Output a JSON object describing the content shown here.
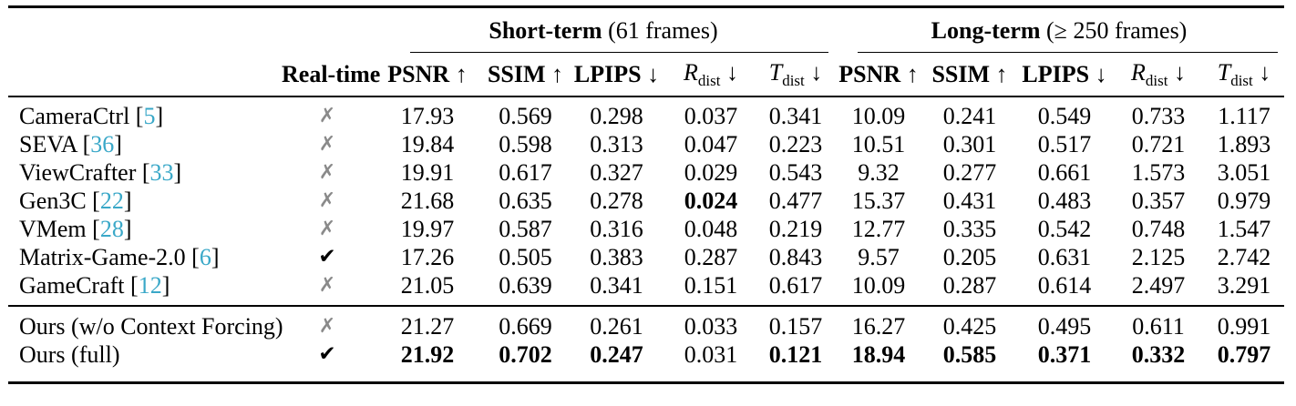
{
  "table": {
    "colors": {
      "cite_link": "#3aa8c8",
      "cross_gray": "#8a8a8a",
      "check_black": "#000000",
      "rule_black": "#000000"
    },
    "glyphs": {
      "yes": "✔",
      "no": "✗"
    },
    "cite_open": "[",
    "cite_close": "]",
    "group_headers": [
      {
        "bold": "Short-term",
        "rest": " (61 frames)"
      },
      {
        "bold": "Long-term",
        "rest": " (≥ 250 frames)"
      }
    ],
    "realtime_header": "Real-time",
    "metrics": [
      {
        "key": "psnr",
        "label": "PSNR",
        "arrow": "↑",
        "math": false
      },
      {
        "key": "ssim",
        "label": "SSIM",
        "arrow": "↑",
        "math": false
      },
      {
        "key": "lpips",
        "label": "LPIPS",
        "arrow": "↓",
        "math": false
      },
      {
        "key": "rdist",
        "label": "R",
        "sub": "dist",
        "arrow": "↓",
        "math": true
      },
      {
        "key": "tdist",
        "label": "T",
        "sub": "dist",
        "arrow": "↓",
        "math": true
      }
    ],
    "rows_main": [
      {
        "method": "CameraCtrl",
        "cite": "5",
        "realtime": false,
        "values": [
          "17.93",
          "0.569",
          "0.298",
          "0.037",
          "0.341",
          "10.09",
          "0.241",
          "0.549",
          "0.733",
          "1.117"
        ],
        "bold": [
          false,
          false,
          false,
          false,
          false,
          false,
          false,
          false,
          false,
          false
        ]
      },
      {
        "method": "SEVA",
        "cite": "36",
        "realtime": false,
        "values": [
          "19.84",
          "0.598",
          "0.313",
          "0.047",
          "0.223",
          "10.51",
          "0.301",
          "0.517",
          "0.721",
          "1.893"
        ],
        "bold": [
          false,
          false,
          false,
          false,
          false,
          false,
          false,
          false,
          false,
          false
        ]
      },
      {
        "method": "ViewCrafter",
        "cite": "33",
        "realtime": false,
        "values": [
          "19.91",
          "0.617",
          "0.327",
          "0.029",
          "0.543",
          "9.32",
          "0.277",
          "0.661",
          "1.573",
          "3.051"
        ],
        "bold": [
          false,
          false,
          false,
          false,
          false,
          false,
          false,
          false,
          false,
          false
        ]
      },
      {
        "method": "Gen3C",
        "cite": "22",
        "realtime": false,
        "values": [
          "21.68",
          "0.635",
          "0.278",
          "0.024",
          "0.477",
          "15.37",
          "0.431",
          "0.483",
          "0.357",
          "0.979"
        ],
        "bold": [
          false,
          false,
          false,
          true,
          false,
          false,
          false,
          false,
          false,
          false
        ]
      },
      {
        "method": "VMem",
        "cite": "28",
        "realtime": false,
        "values": [
          "19.97",
          "0.587",
          "0.316",
          "0.048",
          "0.219",
          "12.77",
          "0.335",
          "0.542",
          "0.748",
          "1.547"
        ],
        "bold": [
          false,
          false,
          false,
          false,
          false,
          false,
          false,
          false,
          false,
          false
        ]
      },
      {
        "method": "Matrix-Game-2.0",
        "cite": "6",
        "realtime": true,
        "values": [
          "17.26",
          "0.505",
          "0.383",
          "0.287",
          "0.843",
          "9.57",
          "0.205",
          "0.631",
          "2.125",
          "2.742"
        ],
        "bold": [
          false,
          false,
          false,
          false,
          false,
          false,
          false,
          false,
          false,
          false
        ]
      },
      {
        "method": "GameCraft",
        "cite": "12",
        "realtime": false,
        "values": [
          "21.05",
          "0.639",
          "0.341",
          "0.151",
          "0.617",
          "10.09",
          "0.287",
          "0.614",
          "2.497",
          "3.291"
        ],
        "bold": [
          false,
          false,
          false,
          false,
          false,
          false,
          false,
          false,
          false,
          false
        ]
      }
    ],
    "rows_ours": [
      {
        "method": "Ours (w/o Context Forcing)",
        "cite": null,
        "realtime": false,
        "values": [
          "21.27",
          "0.669",
          "0.261",
          "0.033",
          "0.157",
          "16.27",
          "0.425",
          "0.495",
          "0.611",
          "0.991"
        ],
        "bold": [
          false,
          false,
          false,
          false,
          false,
          false,
          false,
          false,
          false,
          false
        ]
      },
      {
        "method": "Ours (full)",
        "cite": null,
        "realtime": true,
        "values": [
          "21.92",
          "0.702",
          "0.247",
          "0.031",
          "0.121",
          "18.94",
          "0.585",
          "0.371",
          "0.332",
          "0.797"
        ],
        "bold": [
          true,
          true,
          true,
          false,
          true,
          true,
          true,
          true,
          true,
          true
        ]
      }
    ]
  }
}
